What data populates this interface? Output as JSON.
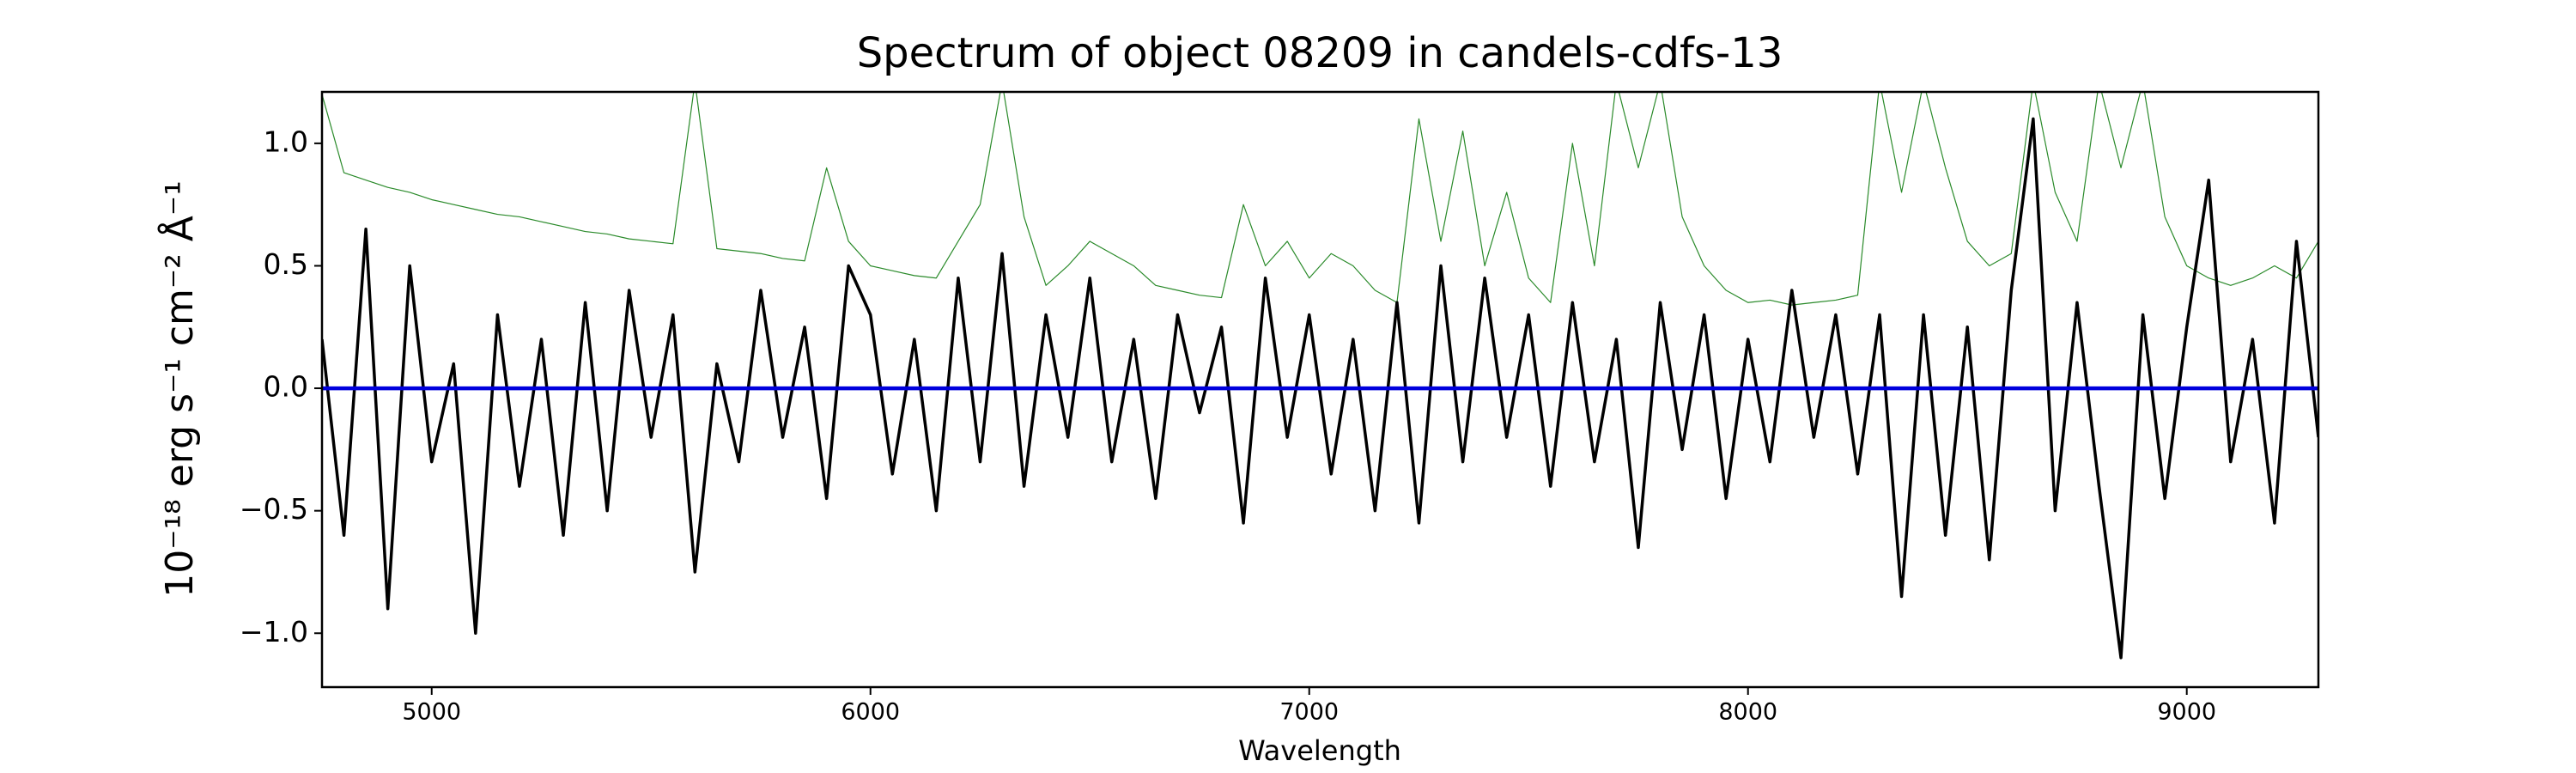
{
  "chart_data": {
    "type": "line",
    "title": "Spectrum of object 08209 in candels-cdfs-13",
    "x_label": "Wavelength",
    "y_label": "10⁻¹⁸ erg s⁻¹ cm⁻² Å⁻¹",
    "x": [
      4750,
      4800,
      4850,
      4900,
      4950,
      5000,
      5050,
      5100,
      5150,
      5200,
      5250,
      5300,
      5350,
      5400,
      5450,
      5500,
      5550,
      5600,
      5650,
      5700,
      5750,
      5800,
      5850,
      5900,
      5950,
      6000,
      6050,
      6100,
      6150,
      6200,
      6250,
      6300,
      6350,
      6400,
      6450,
      6500,
      6550,
      6600,
      6650,
      6700,
      6750,
      6800,
      6850,
      6900,
      6950,
      7000,
      7050,
      7100,
      7150,
      7200,
      7250,
      7300,
      7350,
      7400,
      7450,
      7500,
      7550,
      7600,
      7650,
      7700,
      7750,
      7800,
      7850,
      7900,
      7950,
      8000,
      8050,
      8100,
      8150,
      8200,
      8250,
      8300,
      8350,
      8400,
      8450,
      8500,
      8550,
      8600,
      8650,
      8700,
      8750,
      8800,
      8850,
      8900,
      8950,
      9000,
      9050,
      9100,
      9150,
      9200,
      9250,
      9300
    ],
    "series": [
      {
        "color": "#2a8a2a",
        "linewidth": 1.2,
        "values": [
          1.2,
          0.88,
          0.85,
          0.82,
          0.8,
          0.77,
          0.75,
          0.73,
          0.71,
          0.7,
          0.68,
          0.66,
          0.64,
          0.63,
          0.61,
          0.6,
          0.59,
          1.25,
          0.57,
          0.56,
          0.55,
          0.53,
          0.52,
          0.9,
          0.6,
          0.5,
          0.48,
          0.46,
          0.45,
          0.6,
          0.75,
          1.25,
          0.7,
          0.42,
          0.5,
          0.6,
          0.55,
          0.5,
          0.42,
          0.4,
          0.38,
          0.37,
          0.75,
          0.5,
          0.6,
          0.45,
          0.55,
          0.5,
          0.4,
          0.35,
          1.1,
          0.6,
          1.05,
          0.5,
          0.8,
          0.45,
          0.35,
          1.0,
          0.5,
          1.25,
          0.9,
          1.25,
          0.7,
          0.5,
          0.4,
          0.35,
          0.36,
          0.34,
          0.35,
          0.36,
          0.38,
          1.25,
          0.8,
          1.25,
          0.9,
          0.6,
          0.5,
          0.55,
          1.25,
          0.8,
          0.6,
          1.25,
          0.9,
          1.25,
          0.7,
          0.5,
          0.45,
          0.42,
          0.45,
          0.5,
          0.45,
          0.6
        ]
      },
      {
        "color": "#000000",
        "linewidth": 3.5,
        "values": [
          0.2,
          -0.6,
          0.65,
          -0.9,
          0.5,
          -0.3,
          0.1,
          -1.0,
          0.3,
          -0.4,
          0.2,
          -0.6,
          0.35,
          -0.5,
          0.4,
          -0.2,
          0.3,
          -0.75,
          0.1,
          -0.3,
          0.4,
          -0.2,
          0.25,
          -0.45,
          0.5,
          0.3,
          -0.35,
          0.2,
          -0.5,
          0.45,
          -0.3,
          0.55,
          -0.4,
          0.3,
          -0.2,
          0.45,
          -0.3,
          0.2,
          -0.45,
          0.3,
          -0.1,
          0.25,
          -0.55,
          0.45,
          -0.2,
          0.3,
          -0.35,
          0.2,
          -0.5,
          0.35,
          -0.55,
          0.5,
          -0.3,
          0.45,
          -0.2,
          0.3,
          -0.4,
          0.35,
          -0.3,
          0.2,
          -0.65,
          0.35,
          -0.25,
          0.3,
          -0.45,
          0.2,
          -0.3,
          0.4,
          -0.2,
          0.3,
          -0.35,
          0.3,
          -0.85,
          0.3,
          -0.6,
          0.25,
          -0.7,
          0.4,
          1.1,
          -0.5,
          0.35,
          -0.4,
          -1.1,
          0.3,
          -0.45,
          0.25,
          0.85,
          -0.3,
          0.2,
          -0.55,
          0.6,
          -0.2
        ]
      },
      {
        "color": "#0000dd",
        "linewidth": 4.5,
        "values": [
          0,
          0,
          0,
          0,
          0,
          0,
          0,
          0,
          0,
          0,
          0,
          0,
          0,
          0,
          0,
          0,
          0,
          0,
          0,
          0,
          0,
          0,
          0,
          0,
          0,
          0,
          0,
          0,
          0,
          0,
          0,
          0,
          0,
          0,
          0,
          0,
          0,
          0,
          0,
          0,
          0,
          0,
          0,
          0,
          0,
          0,
          0,
          0,
          0,
          0,
          0,
          0,
          0,
          0,
          0,
          0,
          0,
          0,
          0,
          0,
          0,
          0,
          0,
          0,
          0,
          0,
          0,
          0,
          0,
          0,
          0,
          0,
          0,
          0,
          0,
          0,
          0,
          0,
          0,
          0,
          0,
          0,
          0,
          0,
          0,
          0,
          0,
          0,
          0,
          0,
          0,
          0
        ]
      }
    ],
    "xlim": [
      4750,
      9300
    ],
    "ylim": [
      -1.22,
      1.21
    ],
    "xticks": [
      5000,
      6000,
      7000,
      8000,
      9000
    ],
    "yticks": [
      {
        "value": -1,
        "label": "−1.0"
      },
      {
        "value": -0.5,
        "label": "−0.5"
      },
      {
        "value": 0,
        "label": "0.0"
      },
      {
        "value": 0.5,
        "label": "0.5"
      },
      {
        "value": 1,
        "label": "1.0"
      }
    ],
    "grid": false
  }
}
